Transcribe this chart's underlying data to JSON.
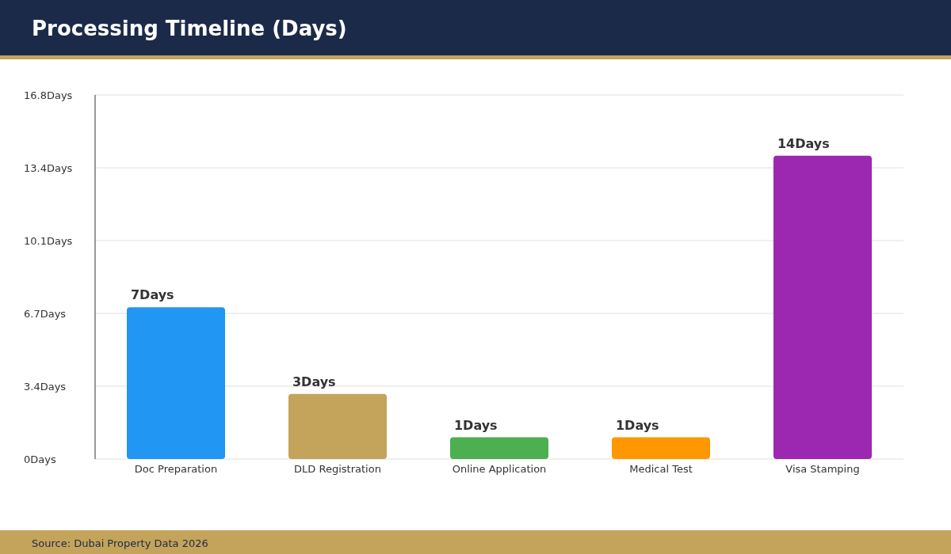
{
  "chart_data": {
    "type": "bar",
    "title": "Processing Timeline (Days)",
    "categories": [
      "Doc Preparation",
      "DLD Registration",
      "Online Application",
      "Medical Test",
      "Visa Stamping"
    ],
    "values": [
      7,
      3,
      1,
      1,
      14
    ],
    "colors": [
      "#2196f3",
      "#c4a35a",
      "#4caf50",
      "#ff9800",
      "#9c27b0"
    ],
    "value_labels": [
      "7Days",
      "3Days",
      "1Days",
      "1Days",
      "14Days"
    ],
    "ylim": [
      0,
      16.8
    ],
    "yticks": [
      {
        "value": 0,
        "label": "0Days"
      },
      {
        "value": 3.36,
        "label": "3.4Days"
      },
      {
        "value": 6.72,
        "label": "6.7Days"
      },
      {
        "value": 10.08,
        "label": "10.1Days"
      },
      {
        "value": 13.44,
        "label": "13.4Days"
      },
      {
        "value": 16.8,
        "label": "16.8Days"
      }
    ],
    "grid": "y",
    "annotations": [
      "Source: Dubai Property Data 2026"
    ]
  }
}
